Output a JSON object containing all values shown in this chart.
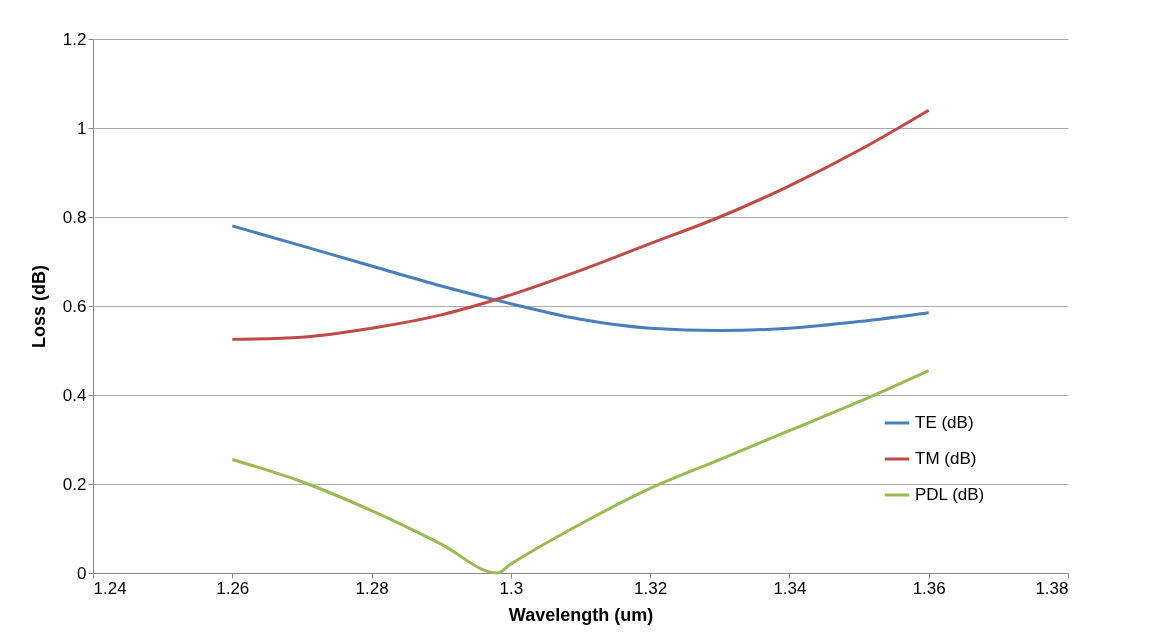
{
  "chart_data": {
    "type": "line",
    "xlabel": "Wavelength (um)",
    "ylabel": "Loss (dB)",
    "xlim": [
      1.24,
      1.38
    ],
    "xticks": [
      1.24,
      1.26,
      1.28,
      1.3,
      1.32,
      1.34,
      1.36,
      1.38
    ],
    "ylim": [
      0,
      1.2
    ],
    "yticks": [
      0,
      0.2,
      0.4,
      0.6,
      0.8,
      1,
      1.2
    ],
    "grid": "y",
    "legend": "right",
    "marker": "none",
    "line_style": "solid",
    "series": [
      {
        "name": "TE (dB)",
        "color": "#4a7ebb",
        "x": [
          1.26,
          1.27,
          1.28,
          1.29,
          1.3,
          1.31,
          1.32,
          1.33,
          1.34,
          1.35,
          1.36
        ],
        "values": [
          0.78,
          0.735,
          0.69,
          0.645,
          0.605,
          0.57,
          0.55,
          0.545,
          0.55,
          0.565,
          0.585
        ]
      },
      {
        "name": "TM (dB)",
        "color": "#be4b48",
        "x": [
          1.26,
          1.27,
          1.28,
          1.29,
          1.3,
          1.31,
          1.32,
          1.33,
          1.34,
          1.35,
          1.36
        ],
        "values": [
          0.525,
          0.53,
          0.55,
          0.58,
          0.625,
          0.68,
          0.74,
          0.8,
          0.87,
          0.95,
          1.04
        ]
      },
      {
        "name": "PDL (dB)",
        "color": "#98b954",
        "x": [
          1.26,
          1.27,
          1.28,
          1.29,
          1.298,
          1.3,
          1.31,
          1.32,
          1.33,
          1.34,
          1.35,
          1.36
        ],
        "values": [
          0.255,
          0.205,
          0.14,
          0.065,
          0,
          0.02,
          0.11,
          0.19,
          0.255,
          0.32,
          0.385,
          0.455
        ]
      }
    ]
  }
}
